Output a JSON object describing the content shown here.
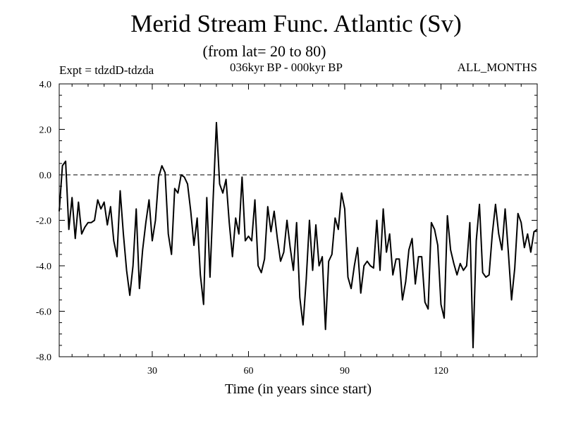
{
  "chart_data": {
    "type": "line",
    "title": "Merid Stream Func. Atlantic (Sv)",
    "subtitle": "(from lat= 20 to 80)",
    "expt_label": "Expt = tdzdD-tdzda",
    "period_label": "036kyr BP - 000kyr BP",
    "months_label": "ALL_MONTHS",
    "xlabel": "Time (in years since start)",
    "ylabel": "",
    "xlim": [
      1,
      150
    ],
    "ylim": [
      -8.0,
      4.0
    ],
    "xticks": [
      30,
      60,
      90,
      120
    ],
    "yticks": [
      "4.0",
      "2.0",
      "0.0",
      "-2.0",
      "-4.0",
      "-6.0",
      "-8.0"
    ],
    "reference_line": 0.0,
    "series": [
      {
        "name": "Merid Stream Func.",
        "x": [
          1,
          2,
          3,
          4,
          5,
          6,
          7,
          8,
          9,
          10,
          11,
          12,
          13,
          14,
          15,
          16,
          17,
          18,
          19,
          20,
          21,
          22,
          23,
          24,
          25,
          26,
          27,
          28,
          29,
          30,
          31,
          32,
          33,
          34,
          35,
          36,
          37,
          38,
          39,
          40,
          41,
          42,
          43,
          44,
          45,
          46,
          47,
          48,
          49,
          50,
          51,
          52,
          53,
          54,
          55,
          56,
          57,
          58,
          59,
          60,
          61,
          62,
          63,
          64,
          65,
          66,
          67,
          68,
          69,
          70,
          71,
          72,
          73,
          74,
          75,
          76,
          77,
          78,
          79,
          80,
          81,
          82,
          83,
          84,
          85,
          86,
          87,
          88,
          89,
          90,
          91,
          92,
          93,
          94,
          95,
          96,
          97,
          98,
          99,
          100,
          101,
          102,
          103,
          104,
          105,
          106,
          107,
          108,
          109,
          110,
          111,
          112,
          113,
          114,
          115,
          116,
          117,
          118,
          119,
          120,
          121,
          122,
          123,
          124,
          125,
          126,
          127,
          128,
          129,
          130,
          131,
          132,
          133,
          134,
          135,
          136,
          137,
          138,
          139,
          140,
          141,
          142,
          143,
          144,
          145,
          146,
          147,
          148,
          149,
          150
        ],
        "values": [
          -1.6,
          0.4,
          0.6,
          -2.4,
          -1.0,
          -2.8,
          -1.2,
          -2.6,
          -2.3,
          -2.1,
          -2.1,
          -2.0,
          -1.1,
          -1.5,
          -1.2,
          -2.2,
          -1.4,
          -2.9,
          -3.6,
          -0.7,
          -2.6,
          -4.2,
          -5.3,
          -4.0,
          -1.5,
          -5.0,
          -3.3,
          -2.1,
          -1.1,
          -2.9,
          -2.0,
          -0.1,
          0.4,
          0.1,
          -2.6,
          -3.5,
          -0.6,
          -0.8,
          0.0,
          -0.1,
          -0.4,
          -1.6,
          -3.1,
          -1.9,
          -4.4,
          -5.7,
          -1.0,
          -4.5,
          -1.0,
          2.3,
          -0.4,
          -0.8,
          -0.2,
          -2.1,
          -3.6,
          -1.9,
          -2.6,
          -0.1,
          -2.9,
          -2.7,
          -2.9,
          -1.1,
          -4.0,
          -4.3,
          -3.7,
          -1.4,
          -2.5,
          -1.6,
          -2.8,
          -3.8,
          -3.4,
          -2.0,
          -3.2,
          -4.2,
          -2.1,
          -5.4,
          -6.6,
          -4.6,
          -2.0,
          -4.2,
          -2.2,
          -4.0,
          -3.6,
          -6.8,
          -3.8,
          -3.5,
          -1.9,
          -2.4,
          -0.8,
          -1.5,
          -4.5,
          -5.0,
          -4.0,
          -3.2,
          -5.2,
          -4.0,
          -3.8,
          -4.0,
          -4.1,
          -2.0,
          -4.2,
          -1.5,
          -3.4,
          -2.6,
          -4.4,
          -3.7,
          -3.7,
          -5.5,
          -4.7,
          -3.3,
          -2.8,
          -4.8,
          -3.6,
          -3.6,
          -5.6,
          -5.9,
          -2.1,
          -2.4,
          -3.1,
          -5.7,
          -6.3,
          -1.8,
          -3.3,
          -3.9,
          -4.4,
          -3.9,
          -4.2,
          -4.0,
          -2.1,
          -7.6,
          -2.9,
          -1.3,
          -4.3,
          -4.5,
          -4.4,
          -2.6,
          -1.3,
          -2.6,
          -3.3,
          -1.5,
          -3.4,
          -5.5,
          -4.1,
          -1.7,
          -2.1,
          -3.2,
          -2.6,
          -3.4,
          -2.5,
          -2.4
        ]
      }
    ]
  }
}
